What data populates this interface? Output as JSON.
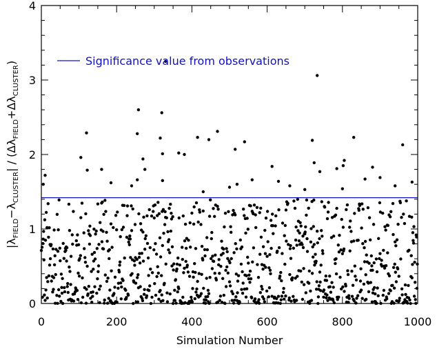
{
  "chart_data": {
    "type": "scatter",
    "xlabel": "Simulation Number",
    "ylabel": {
      "parts": [
        {
          "text": "|λ",
          "sub": false
        },
        {
          "text": "FIELD",
          "sub": true
        },
        {
          "text": "−λ",
          "sub": false
        },
        {
          "text": "CLUSTER",
          "sub": true
        },
        {
          "text": "| / (Δλ",
          "sub": false
        },
        {
          "text": "FIELD",
          "sub": true
        },
        {
          "text": "+Δλ",
          "sub": false
        },
        {
          "text": "CLUSTER",
          "sub": true
        },
        {
          "text": ")",
          "sub": false
        }
      ]
    },
    "xlim": [
      0,
      1000
    ],
    "ylim": [
      0,
      4
    ],
    "x_ticks": [
      0,
      200,
      400,
      600,
      800,
      1000
    ],
    "y_ticks": [
      0,
      1,
      2,
      3,
      4
    ],
    "x_tick_labels": [
      "0",
      "200",
      "400",
      "600",
      "800",
      "1000"
    ],
    "y_tick_labels": [
      "0",
      "1",
      "2",
      "3",
      "4"
    ],
    "reference_line": {
      "label": "Significance value from observations",
      "y": 1.42,
      "color": "#1010cc"
    },
    "point_color": "#000000",
    "axis_color": "#000000",
    "legend_position": "upper-left",
    "grid": false,
    "highlighted_points": [
      {
        "x": 120,
        "y": 2.29
      },
      {
        "x": 255,
        "y": 2.28
      },
      {
        "x": 258,
        "y": 2.6
      },
      {
        "x": 320,
        "y": 2.56
      },
      {
        "x": 316,
        "y": 2.22
      },
      {
        "x": 322,
        "y": 2.01
      },
      {
        "x": 365,
        "y": 2.02
      },
      {
        "x": 380,
        "y": 2.0
      },
      {
        "x": 415,
        "y": 2.23
      },
      {
        "x": 445,
        "y": 2.2
      },
      {
        "x": 468,
        "y": 2.31
      },
      {
        "x": 515,
        "y": 2.07
      },
      {
        "x": 540,
        "y": 2.17
      },
      {
        "x": 613,
        "y": 1.84
      },
      {
        "x": 720,
        "y": 2.19
      },
      {
        "x": 733,
        "y": 3.06
      },
      {
        "x": 830,
        "y": 2.23
      },
      {
        "x": 960,
        "y": 2.13
      },
      {
        "x": 330,
        "y": 3.25
      },
      {
        "x": 105,
        "y": 1.96
      },
      {
        "x": 122,
        "y": 1.79
      },
      {
        "x": 160,
        "y": 1.8
      },
      {
        "x": 270,
        "y": 1.94
      },
      {
        "x": 275,
        "y": 1.8
      },
      {
        "x": 785,
        "y": 1.81
      },
      {
        "x": 802,
        "y": 1.85
      },
      {
        "x": 805,
        "y": 1.92
      },
      {
        "x": 725,
        "y": 1.89
      },
      {
        "x": 740,
        "y": 1.77
      },
      {
        "x": 5,
        "y": 1.6
      },
      {
        "x": 185,
        "y": 1.62
      },
      {
        "x": 240,
        "y": 1.58
      },
      {
        "x": 322,
        "y": 1.65
      },
      {
        "x": 500,
        "y": 1.56
      },
      {
        "x": 560,
        "y": 1.66
      },
      {
        "x": 630,
        "y": 1.64
      },
      {
        "x": 660,
        "y": 1.58
      },
      {
        "x": 860,
        "y": 1.67
      },
      {
        "x": 900,
        "y": 1.69
      },
      {
        "x": 940,
        "y": 1.58
      },
      {
        "x": 985,
        "y": 1.63
      },
      {
        "x": 10,
        "y": 1.72
      },
      {
        "x": 880,
        "y": 1.83
      },
      {
        "x": 520,
        "y": 1.6
      },
      {
        "x": 255,
        "y": 1.66
      },
      {
        "x": 800,
        "y": 1.54
      },
      {
        "x": 430,
        "y": 1.5
      },
      {
        "x": 700,
        "y": 1.53
      }
    ],
    "dense_points_count": 1000,
    "dense_distribution": "roughly uniform in x from 0 to 1000; y concentrated between 0 and 1.4, densest near 0–0.5"
  }
}
